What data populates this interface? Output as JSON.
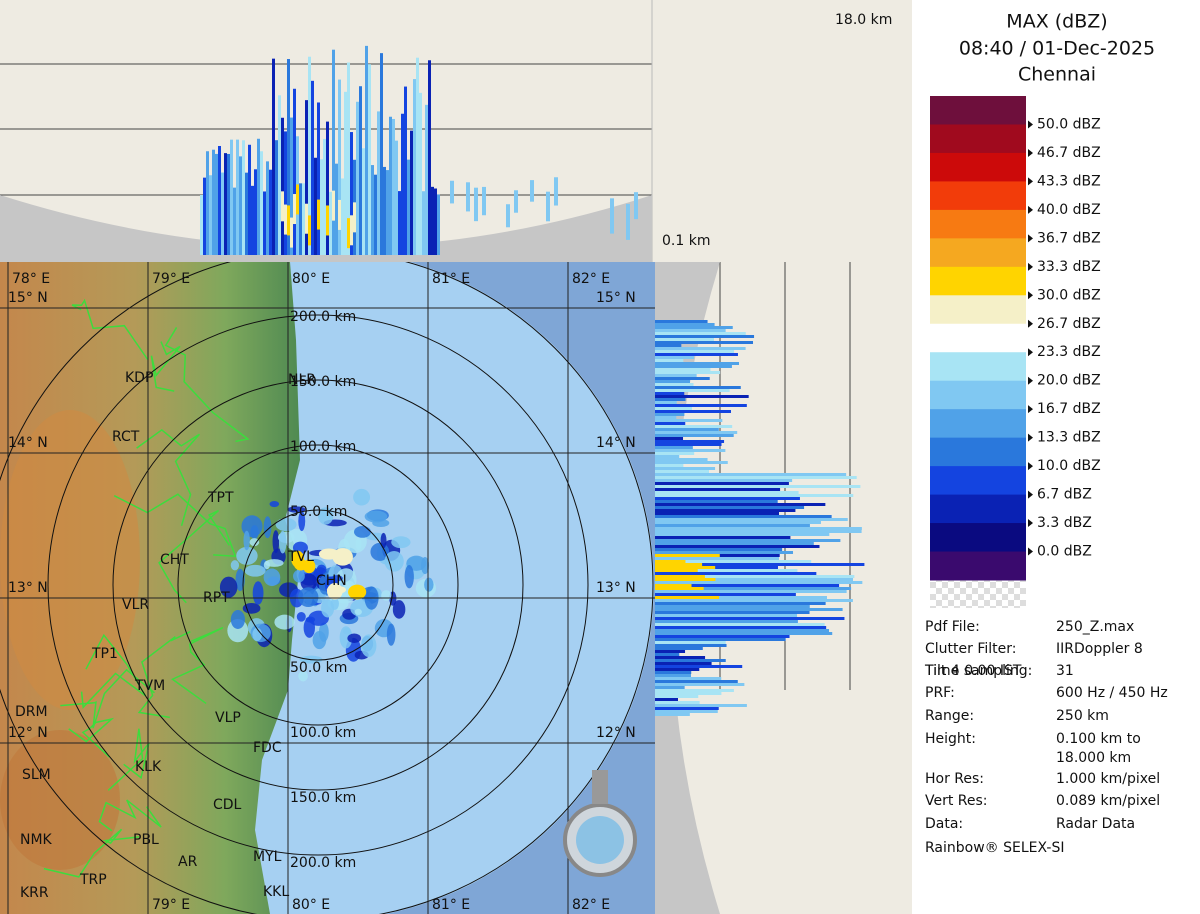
{
  "top_panel": {
    "height_max": "18.0 km"
  },
  "side_panel": {
    "height_min": "0.1 km"
  },
  "header": {
    "product": "MAX (dBZ)",
    "datetime": "08:40 / 01-Dec-2025",
    "station": "Chennai"
  },
  "legend": {
    "labels": [
      "50.0 dBZ",
      "46.7 dBZ",
      "43.3 dBZ",
      "40.0 dBZ",
      "36.7 dBZ",
      "33.3 dBZ",
      "30.0 dBZ",
      "26.7 dBZ",
      "23.3 dBZ",
      "20.0 dBZ",
      "16.7 dBZ",
      "13.3 dBZ",
      "10.0 dBZ",
      "6.7 dBZ",
      "3.3 dBZ",
      "0.0 dBZ"
    ],
    "colors": [
      "#6e0f3c",
      "#a00a1e",
      "#cc0a0a",
      "#f23c0a",
      "#f77a12",
      "#f5a820",
      "#ffd400",
      "#f5f0c8",
      "#ffffff",
      "#a8e4f4",
      "#80c8f2",
      "#50a2e8",
      "#2a78dc",
      "#1444e0",
      "#0a22b4",
      "#0a0a80",
      "#3a0a6e"
    ]
  },
  "info": {
    "rows": [
      {
        "label": "Pdf File:",
        "value": "250_Z.max"
      },
      {
        "label": "Clutter Filter:",
        "value": "IIRDoppler 8"
      },
      {
        "label": "Time sampling:",
        "value": "31"
      },
      {
        "label": "PRF:",
        "value": "600 Hz / 450 Hz"
      },
      {
        "label": "Range:",
        "value": "250 km"
      },
      {
        "label": "Height:",
        "value": [
          "0.100 km to",
          "18.000 km"
        ]
      },
      {
        "label": "Hor Res:",
        "value": "1.000 km/pixel"
      },
      {
        "label": "Vert Res:",
        "value": "0.089 km/pixel"
      },
      {
        "label": "Data:",
        "value": "Radar Data"
      }
    ],
    "overlap": "Tilt 4 0.00 IST",
    "footer": "Rainbow® SELEX-SI"
  },
  "map": {
    "lon_labels": [
      "78° E",
      "79° E",
      "80° E",
      "81° E",
      "82° E"
    ],
    "lat_labels": [
      "15° N",
      "14° N",
      "13° N",
      "12° N"
    ],
    "range_labels": [
      "50.0 km",
      "100.0 km",
      "150.0 km",
      "200.0 km"
    ],
    "cities": [
      "KDP",
      "RCT",
      "TPT",
      "CHT",
      "VLR",
      "RPT",
      "TP1",
      "TVM",
      "DRM",
      "VLP",
      "KLK",
      "SLM",
      "CDL",
      "NMK",
      "PBL",
      "AR",
      "MYL",
      "TRP",
      "KRR",
      "KKL",
      "TVL",
      "CHN",
      "NLR",
      "FDC"
    ]
  }
}
